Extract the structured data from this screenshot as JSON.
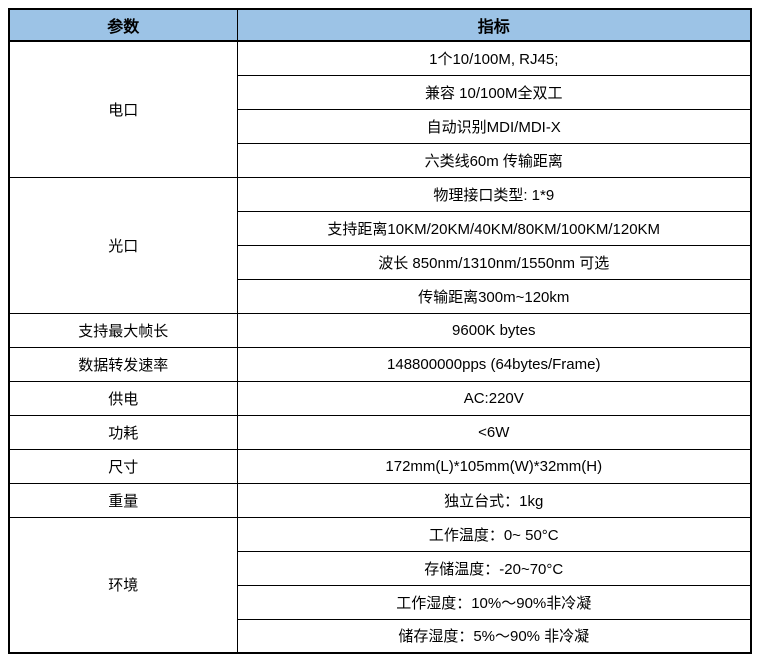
{
  "table": {
    "header_bg": "#9cc3e6",
    "border_color": "#000000",
    "columns": [
      {
        "label": "参数"
      },
      {
        "label": "指标"
      }
    ],
    "sections": [
      {
        "param": "电口",
        "values": [
          "1个10/100M, RJ45;",
          "兼容 10/100M全双工",
          "自动识别MDI/MDI-X",
          "六类线60m 传输距离"
        ]
      },
      {
        "param": "光口",
        "values": [
          "物理接口类型: 1*9",
          "支持距离10KM/20KM/40KM/80KM/100KM/120KM",
          "波长 850nm/1310nm/1550nm 可选",
          "传输距离300m~120km"
        ]
      },
      {
        "param": "支持最大帧长",
        "values": [
          "9600K bytes"
        ]
      },
      {
        "param": "数据转发速率",
        "values": [
          "148800000pps (64bytes/Frame)"
        ]
      },
      {
        "param": "供电",
        "values": [
          "AC:220V"
        ]
      },
      {
        "param": "功耗",
        "values": [
          "<6W"
        ]
      },
      {
        "param": "尺寸",
        "values": [
          "172mm(L)*105mm(W)*32mm(H)"
        ]
      },
      {
        "param": "重量",
        "values": [
          "独立台式：1kg"
        ]
      },
      {
        "param": "环境",
        "values": [
          "工作温度：0~ 50°C",
          "存储温度：-20~70°C",
          "工作湿度：10%～90%非冷凝",
          "储存湿度：5%～90% 非冷凝"
        ]
      }
    ]
  }
}
